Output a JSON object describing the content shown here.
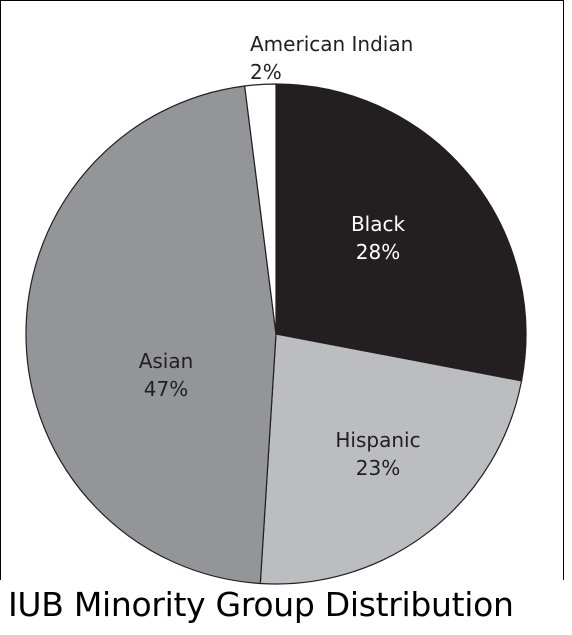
{
  "chart_data": {
    "type": "pie",
    "title": "IUB Minority Group Distribution",
    "slices": [
      {
        "name": "Black",
        "value": 28,
        "label": "28%",
        "color": "#231f20",
        "text_color": "#ffffff"
      },
      {
        "name": "Hispanic",
        "value": 23,
        "label": "23%",
        "color": "#bcbdc0",
        "text_color": "#231f20"
      },
      {
        "name": "Asian",
        "value": 47,
        "label": "47%",
        "color": "#939598",
        "text_color": "#231f20"
      },
      {
        "name": "American Indian",
        "value": 2,
        "label": "2%",
        "color": "#ffffff",
        "text_color": "#231f20"
      }
    ],
    "start_angle_deg": 0,
    "direction": "clockwise"
  }
}
